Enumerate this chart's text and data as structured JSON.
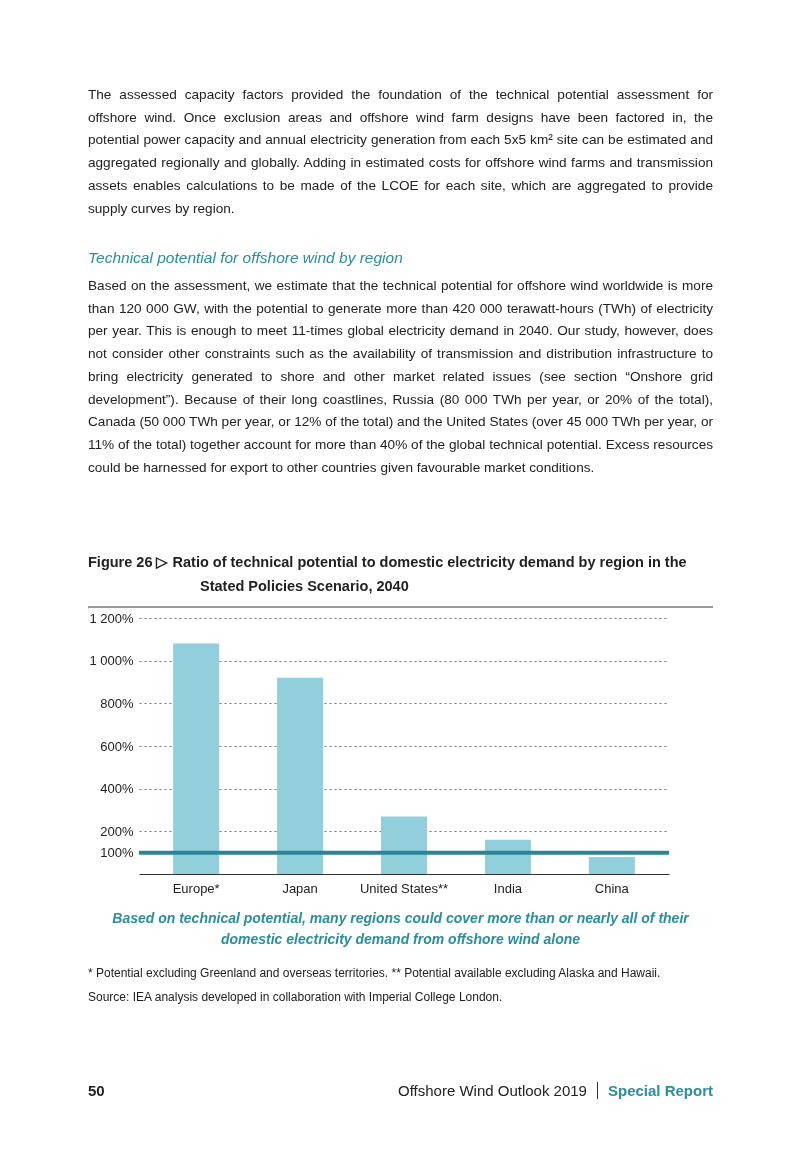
{
  "chart_data": {
    "type": "bar",
    "title": "Figure 26 ▷ Ratio of technical potential to domestic electricity demand by region in the Stated Policies Scenario, 2040",
    "categories": [
      "Europe*",
      "Japan",
      "United States**",
      "India",
      "China"
    ],
    "values": [
      1080,
      920,
      270,
      160,
      80
    ],
    "color": "#92cfdc",
    "ylim": [
      0,
      1200
    ],
    "yticks": [
      {
        "value": 100,
        "label": "100%"
      },
      {
        "value": 200,
        "label": "200%"
      },
      {
        "value": 400,
        "label": "400%"
      },
      {
        "value": 600,
        "label": "600%"
      },
      {
        "value": 800,
        "label": "800%"
      },
      {
        "value": 1000,
        "label": "1 000%"
      },
      {
        "value": 1200,
        "label": "1 200%"
      }
    ],
    "grid": "y",
    "ref_lines": [
      {
        "axis": "y",
        "value": 100,
        "color": "#2a8494"
      }
    ],
    "annotations": [
      "The assessed capacity factors provided the foundation of the technical potential assessment for offshore wind. Once exclusion areas and offshore wind farm designs have been factored in, the potential power capacity and annual electricity generation from each 5x5 km² site can be estimated and aggregated regionally and globally. Adding in estimated costs for offshore wind farms and transmission assets enables calculations to be made of the LCOE for each site, which are aggregated to provide supply curves by region.",
      "Technical potential for offshore wind by region",
      "Based on the assessment, we estimate that the technical potential for offshore wind worldwide is more than 120 000 GW, with the potential to generate more than 420 000 terawatt-hours (TWh) of electricity per year. This is enough to meet 11-times global electricity demand in 2040. Our study, however, does not consider other constraints such as the availability of transmission and distribution infrastructure to bring electricity generated to shore and other market related issues (see section “Onshore grid development”). Because of their long coastlines, Russia (80 000 TWh per year, or 20% of the total), Canada (50 000 TWh per year, or 12% of the total) and the United States (over 45 000 TWh per year, or 11% of the total) together account for more than 40% of the global technical potential. Excess resources could be harnessed for export to other countries given favourable market conditions.",
      "Based on technical potential, many regions could cover more than or nearly all of their domestic electricity demand from offshore wind alone",
      "* Potential excluding Greenland and overseas territories. ** Potential available excluding Alaska and Hawaii.",
      "Source: IEA analysis developed in collaboration with Imperial College London.",
      "50",
      "Offshore Wind Outlook 2019",
      "Special Report"
    ]
  }
}
